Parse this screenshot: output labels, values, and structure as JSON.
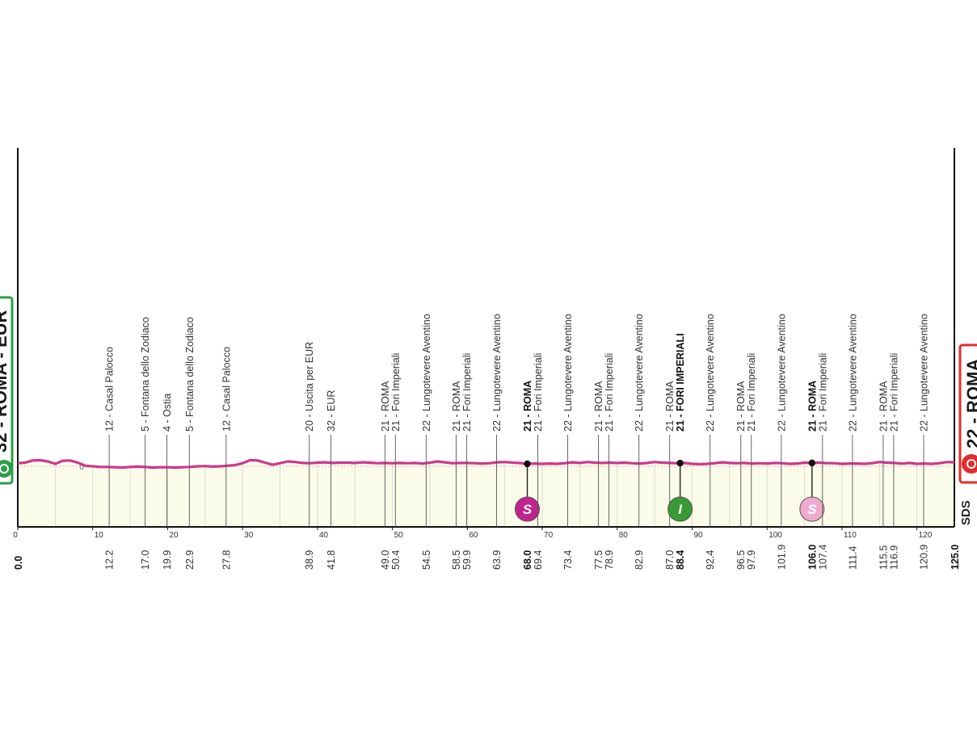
{
  "start": {
    "label": "32 - ROMA - EUR",
    "km": "0.0",
    "color": "#2e9e48"
  },
  "finish": {
    "label": "22 - ROMA",
    "km": "125.0",
    "color": "#e32b2b"
  },
  "sponsor": "SDS",
  "colors": {
    "profile_line": "#d0368c",
    "profile_fill": "#fbfbea",
    "sprint": "#c0238c",
    "intermediate": "#3a9a35",
    "sprint_light": "#f0aace"
  },
  "chart_data": {
    "type": "area",
    "title": "",
    "xlabel": "",
    "ylabel": "",
    "xlim": [
      0,
      125
    ],
    "x_ticks": [
      0,
      10,
      20,
      30,
      40,
      50,
      60,
      70,
      80,
      90,
      100,
      110,
      120
    ],
    "elevation_marker": "0",
    "profile_profile_note": "",
    "profile": {
      "x": [
        0,
        1,
        2,
        3,
        4,
        5,
        6,
        7,
        8,
        9,
        10,
        11,
        12,
        13,
        14,
        15,
        16,
        17,
        18,
        19,
        20,
        21,
        22,
        23,
        24,
        25,
        26,
        27,
        28,
        29,
        30,
        31,
        32,
        33,
        34,
        35,
        36,
        37,
        38,
        39,
        40,
        41,
        42,
        43,
        44,
        45,
        46,
        47,
        48,
        49,
        50,
        51,
        52,
        53,
        54,
        55,
        56,
        57,
        58,
        59,
        60,
        61,
        62,
        63,
        64,
        65,
        66,
        67,
        68,
        69,
        70,
        71,
        72,
        73,
        74,
        75,
        76,
        77,
        78,
        79,
        80,
        81,
        82,
        83,
        84,
        85,
        86,
        87,
        88,
        89,
        90,
        91,
        92,
        93,
        94,
        95,
        96,
        97,
        98,
        99,
        100,
        101,
        102,
        103,
        104,
        105,
        106,
        107,
        108,
        109,
        110,
        111,
        112,
        113,
        114,
        115,
        116,
        117,
        118,
        119,
        120,
        121,
        122,
        123,
        124,
        125
      ],
      "y": [
        32,
        34,
        41,
        42,
        38,
        30,
        40,
        41,
        34,
        24,
        22,
        20,
        20,
        19,
        18,
        20,
        21,
        20,
        18,
        19,
        19,
        18,
        19,
        20,
        22,
        23,
        21,
        22,
        24,
        26,
        32,
        42,
        41,
        34,
        27,
        32,
        38,
        36,
        33,
        32,
        34,
        35,
        33,
        34,
        34,
        33,
        35,
        34,
        32,
        33,
        32,
        33,
        32,
        33,
        31,
        34,
        38,
        35,
        32,
        33,
        33,
        32,
        31,
        32,
        35,
        36,
        34,
        33,
        30,
        31,
        30,
        31,
        30,
        32,
        35,
        33,
        36,
        34,
        33,
        34,
        33,
        34,
        32,
        31,
        33,
        36,
        34,
        33,
        32,
        33,
        30,
        29,
        30,
        32,
        35,
        33,
        32,
        33,
        31,
        32,
        31,
        33,
        32,
        30,
        31,
        34,
        33,
        34,
        32,
        32,
        30,
        31,
        31,
        30,
        32,
        36,
        34,
        33,
        31,
        33,
        30,
        31,
        30,
        32,
        36,
        35
      ]
    },
    "waypoints": [
      {
        "km": "12.2",
        "label": "12 - Casal Palocco",
        "x": 12.2
      },
      {
        "km": "17.0",
        "label": "5 - Fontana dello Zodiaco",
        "x": 17.0
      },
      {
        "km": "19.9",
        "label": "4 - Ostia",
        "x": 19.9
      },
      {
        "km": "22.9",
        "label": "5 - Fontana dello Zodiaco",
        "x": 22.9
      },
      {
        "km": "27.8",
        "label": "12 - Casal Palocco",
        "x": 27.8
      },
      {
        "km": "38.9",
        "label": "20 - Uscita per EUR",
        "x": 38.9
      },
      {
        "km": "41.8",
        "label": "32 - EUR",
        "x": 41.8
      },
      {
        "km": "49.0",
        "label": "21 - ROMA",
        "x": 49.0
      },
      {
        "km": "50.4",
        "label": "21 - Fori Imperiali",
        "x": 50.4
      },
      {
        "km": "54.5",
        "label": "22 - Lungotevere Aventino",
        "x": 54.5
      },
      {
        "km": "58.5",
        "label": "21 - ROMA",
        "x": 58.5
      },
      {
        "km": "59.9",
        "label": "21 - Fori Imperiali",
        "x": 59.9
      },
      {
        "km": "63.9",
        "label": "22 - Lungotevere Aventino",
        "x": 63.9
      },
      {
        "km": "68.0",
        "label": "21 - ROMA",
        "x": 68.0,
        "bold": true,
        "marker": "S",
        "marker_color": "#c0238c"
      },
      {
        "km": "69.4",
        "label": "21 - Fori Imperiali",
        "x": 69.4
      },
      {
        "km": "73.4",
        "label": "22 - Lungotevere Aventino",
        "x": 73.4
      },
      {
        "km": "77.5",
        "label": "21 - ROMA",
        "x": 77.5
      },
      {
        "km": "78.9",
        "label": "21 - Fori Imperiali",
        "x": 78.9
      },
      {
        "km": "82.9",
        "label": "22 - Lungotevere Aventino",
        "x": 82.9
      },
      {
        "km": "87.0",
        "label": "21 - ROMA",
        "x": 87.0
      },
      {
        "km": "88.4",
        "label": "21 - FORI IMPERIALI",
        "x": 88.4,
        "bold": true,
        "marker": "I",
        "marker_color": "#3a9a35"
      },
      {
        "km": "92.4",
        "label": "22 - Lungotevere Aventino",
        "x": 92.4
      },
      {
        "km": "96.5",
        "label": "21 - ROMA",
        "x": 96.5
      },
      {
        "km": "97.9",
        "label": "21 - Fori Imperiali",
        "x": 97.9
      },
      {
        "km": "101.9",
        "label": "22 - Lungotevere Aventino",
        "x": 101.9
      },
      {
        "km": "106.0",
        "label": "21 - ROMA",
        "x": 106.0,
        "bold": true,
        "marker": "S",
        "marker_color": "#f0aace"
      },
      {
        "km": "107.4",
        "label": "21 - Fori Imperiali",
        "x": 107.4
      },
      {
        "km": "111.4",
        "label": "22 - Lungotevere Aventino",
        "x": 111.4
      },
      {
        "km": "115.5",
        "label": "21 - ROMA",
        "x": 115.5
      },
      {
        "km": "116.9",
        "label": "21 - Fori Imperiali",
        "x": 116.9
      },
      {
        "km": "120.9",
        "label": "22 - Lungotevere Aventino",
        "x": 120.9
      }
    ]
  }
}
